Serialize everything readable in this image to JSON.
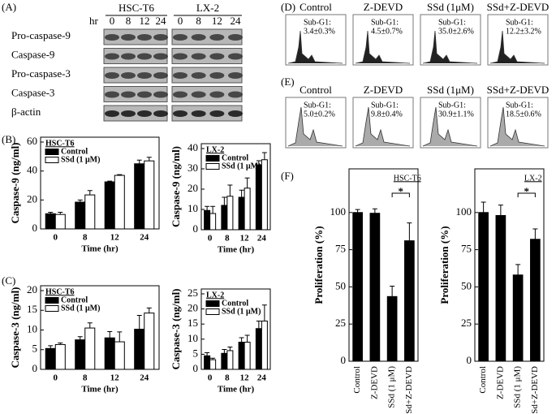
{
  "panel_labels": [
    "(A)",
    "(B)",
    "(C)",
    "(D)",
    "(E)",
    "(F)"
  ],
  "blot": {
    "cell_lines": [
      "HSC-T6",
      "LX-2"
    ],
    "time_unit": "hr",
    "times": [
      "0",
      "8",
      "12",
      "24"
    ],
    "rows": [
      "Pro-caspase-9",
      "Caspase-9",
      "Pro-caspase-3",
      "Caspase-3",
      "β-actin"
    ]
  },
  "flow": [
    {
      "groups": [
        {
          "label": "Control",
          "text": "Sub-G1:",
          "value": "3.4±0.3%"
        },
        {
          "label": "Z-DEVD",
          "text": "Sub-G1:",
          "value": "4.5±0.7%"
        },
        {
          "label": "SSd (1μM)",
          "text": "Sub-G1:",
          "value": "35.0±2.6%"
        },
        {
          "label": "SSd+Z-DEVD",
          "text": "Sub-G1:",
          "value": "12.2±3.2%"
        }
      ]
    },
    {
      "groups": [
        {
          "label": "Control",
          "text": "Sub-G1:",
          "value": "5.0±0.2%"
        },
        {
          "label": "Z-DEVD",
          "text": "Sub-G1:",
          "value": "9.8±0.4%"
        },
        {
          "label": "SSd (1μM)",
          "text": "Sub-G1:",
          "value": "30.9±1.1%"
        },
        {
          "label": "SSd+Z-DEVD",
          "text": "Sub-G1:",
          "value": "18.5±0.6%"
        }
      ]
    }
  ],
  "chart_data": [
    {
      "type": "bar",
      "title": "HSC-T6",
      "ylabel": "Caspase-9 (ng/ml)",
      "xlabel": "Time (hr)",
      "categories": [
        "0",
        "8",
        "12",
        "24"
      ],
      "ylim": [
        0,
        60
      ],
      "yticks": [
        0,
        20,
        40,
        60
      ],
      "legend": "upper left",
      "series": [
        {
          "name": "Control",
          "color": "#000000",
          "values": [
            10.5,
            18.5,
            32.5,
            45
          ],
          "errors": [
            1,
            1.5,
            0.5,
            2.5
          ]
        },
        {
          "name": "SSd (1 μM)",
          "color": "#ffffff",
          "values": [
            10,
            23.5,
            37,
            47
          ],
          "errors": [
            1.5,
            3,
            0.5,
            2.5
          ]
        }
      ]
    },
    {
      "type": "bar",
      "title": "LX-2",
      "ylabel": "Caspase-9 (ng/ml)",
      "xlabel": "Time (hr)",
      "categories": [
        "0",
        "8",
        "12",
        "24"
      ],
      "ylim": [
        0,
        40
      ],
      "yticks": [
        0,
        10,
        20,
        30,
        40
      ],
      "legend": "upper left",
      "series": [
        {
          "name": "Control",
          "color": "#000000",
          "values": [
            9.5,
            12,
            16,
            32
          ],
          "errors": [
            2,
            4,
            3.5,
            2
          ]
        },
        {
          "name": "SSd (1 μM)",
          "color": "#ffffff",
          "values": [
            8,
            16.5,
            20.5,
            34.5
          ],
          "errors": [
            3.5,
            5.5,
            5,
            3.5
          ]
        }
      ]
    },
    {
      "type": "bar",
      "title": "HSC-T6",
      "ylabel": "Caspase-3 (ng/ml)",
      "xlabel": "Time (hr)",
      "categories": [
        "0",
        "8",
        "12",
        "24"
      ],
      "ylim": [
        0,
        20
      ],
      "yticks": [
        0,
        5,
        10,
        15,
        20
      ],
      "legend": "upper left",
      "series": [
        {
          "name": "Control",
          "color": "#000000",
          "values": [
            5.3,
            7.5,
            8,
            10.2
          ],
          "errors": [
            0.7,
            0.8,
            1.6,
            3.5
          ]
        },
        {
          "name": "SSd (1 μM)",
          "color": "#ffffff",
          "values": [
            6.3,
            10.5,
            7,
            14.3
          ],
          "errors": [
            0.4,
            1.3,
            2.5,
            1.3
          ]
        }
      ]
    },
    {
      "type": "bar",
      "title": "LX-2",
      "ylabel": "Caspase-3 (ng/ml)",
      "xlabel": "Time (hr)",
      "categories": [
        "0",
        "8",
        "12",
        "24"
      ],
      "ylim": [
        0,
        25
      ],
      "yticks": [
        0,
        5,
        10,
        15,
        20,
        25
      ],
      "legend": "upper left",
      "series": [
        {
          "name": "Control",
          "color": "#000000",
          "values": [
            4.5,
            5.3,
            9,
            13.5
          ],
          "errors": [
            1,
            1.3,
            1.5,
            2.5
          ]
        },
        {
          "name": "SSd (1 μM)",
          "color": "#ffffff",
          "values": [
            3.2,
            6.2,
            9,
            16
          ],
          "errors": [
            0.5,
            1.2,
            2.3,
            5.3
          ]
        }
      ]
    },
    {
      "type": "bar",
      "title": "HSC-T6",
      "ylabel": "Proliferation (%)",
      "significance": "*",
      "categories": [
        "Control",
        "Z-DEVD",
        "SSd (1 μM)",
        "SSd+Z-DEVD"
      ],
      "ylim": [
        0,
        125
      ],
      "yticks": [
        0,
        25,
        50,
        75,
        100
      ],
      "series": [
        {
          "color": "#000000",
          "values": [
            100,
            99.5,
            43.5,
            81
          ],
          "errors": [
            2,
            3,
            7,
            12
          ]
        }
      ]
    },
    {
      "type": "bar",
      "title": "LX-2",
      "ylabel": "Proliferation (%)",
      "significance": "*",
      "categories": [
        "Control",
        "Z-DEVD",
        "SSd (1 μM)",
        "SSd+Z-DEVD"
      ],
      "ylim": [
        0,
        125
      ],
      "yticks": [
        0,
        25,
        50,
        75,
        100
      ],
      "series": [
        {
          "color": "#000000",
          "values": [
            100,
            98,
            58,
            82
          ],
          "errors": [
            7,
            7,
            7,
            7
          ]
        }
      ]
    }
  ]
}
